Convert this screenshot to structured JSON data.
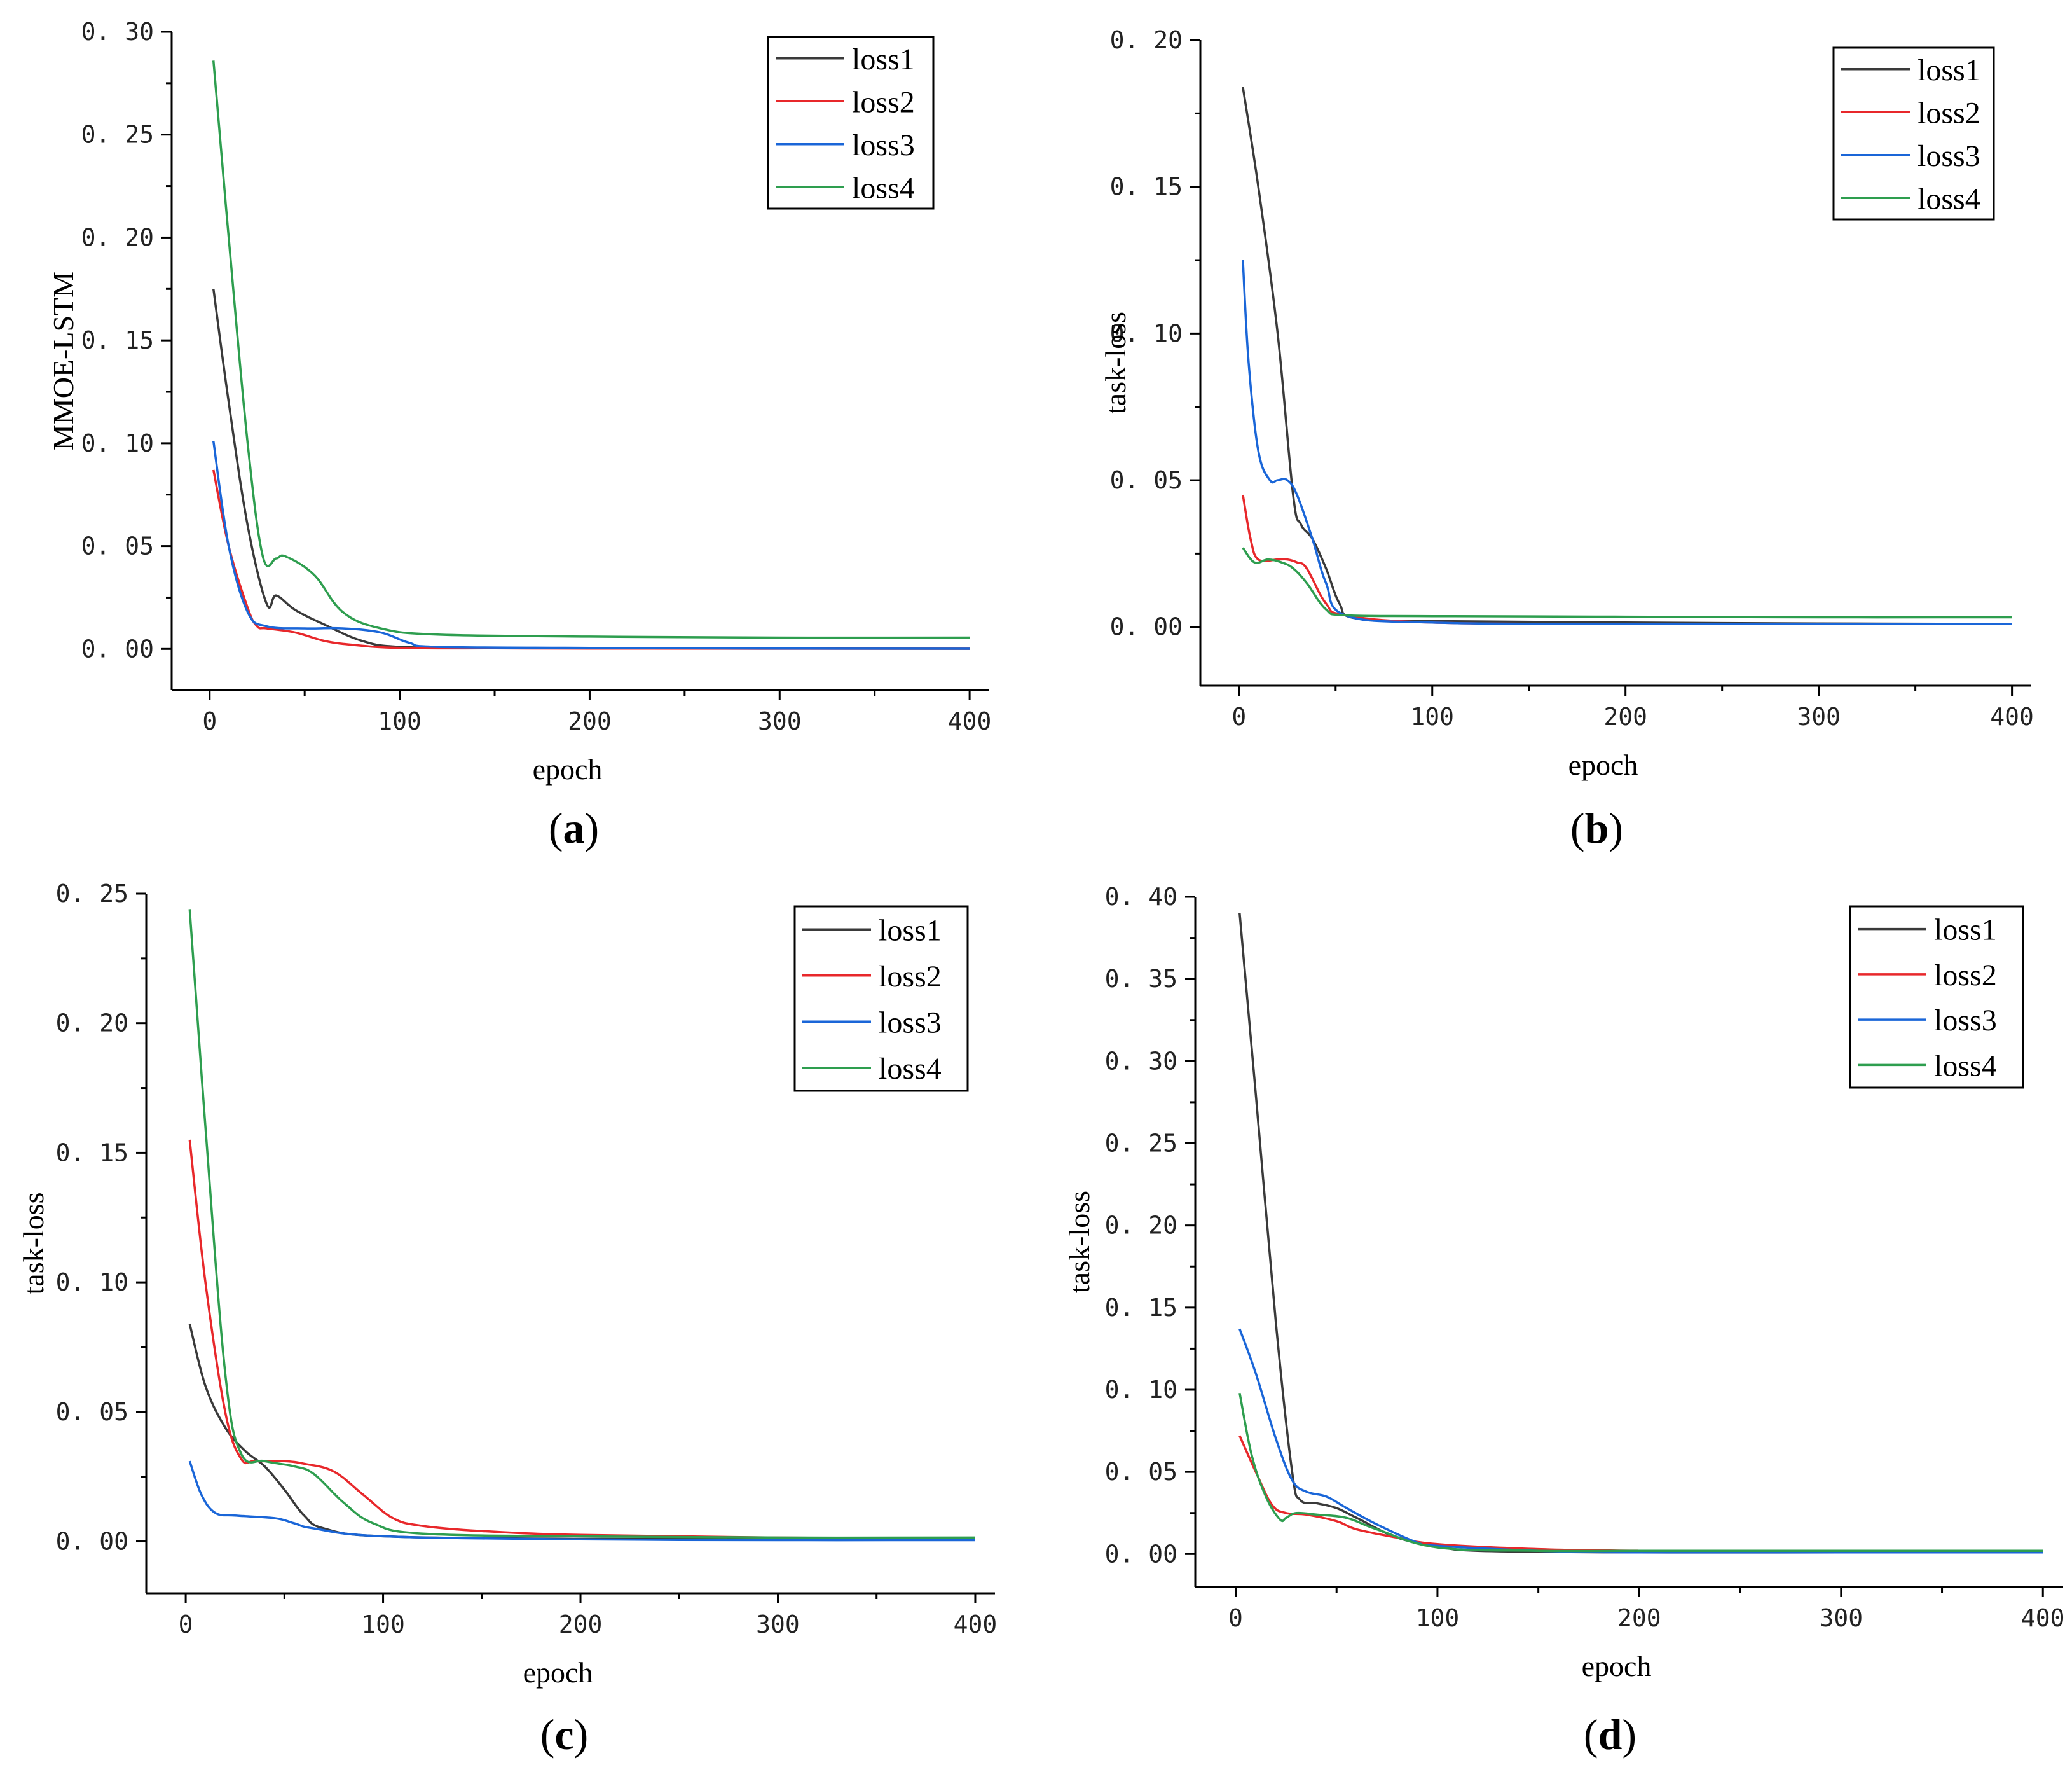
{
  "figure": {
    "colors": {
      "loss1": "#3a3a3a",
      "loss2": "#e8282b",
      "loss3": "#1a66d8",
      "loss4": "#2e9e4f"
    }
  },
  "chart_data": [
    {
      "type": "line",
      "panel_label": "a",
      "xlabel": "epoch",
      "ylabel": "MMOE-LSTM",
      "xlim": [
        -20,
        410
      ],
      "ylim": [
        -0.02,
        0.3
      ],
      "xticks": [
        0,
        100,
        200,
        300,
        400
      ],
      "yticks": [
        0.0,
        0.05,
        0.1,
        0.15,
        0.2,
        0.25,
        0.3
      ],
      "ytick_labels": [
        "0. 00",
        "0. 05",
        "0. 10",
        "0. 15",
        "0. 20",
        "0. 25",
        "0. 30"
      ],
      "legend": [
        "loss1",
        "loss2",
        "loss3",
        "loss4"
      ],
      "legend_position": "top-right",
      "series": [
        {
          "name": "loss1",
          "x": [
            2,
            10,
            20,
            30,
            35,
            45,
            60,
            80,
            100,
            150,
            200,
            300,
            400
          ],
          "y": [
            0.175,
            0.12,
            0.06,
            0.022,
            0.026,
            0.019,
            0.012,
            0.004,
            0.001,
            0.0005,
            0.0003,
            0.0002,
            0.0001
          ]
        },
        {
          "name": "loss2",
          "x": [
            2,
            10,
            20,
            25,
            30,
            45,
            60,
            75,
            100,
            150,
            200,
            300,
            400
          ],
          "y": [
            0.087,
            0.05,
            0.02,
            0.011,
            0.01,
            0.008,
            0.004,
            0.002,
            0.0005,
            0.0003,
            0.0002,
            0.0001,
            0.0001
          ]
        },
        {
          "name": "loss3",
          "x": [
            2,
            10,
            20,
            30,
            50,
            70,
            90,
            105,
            120,
            200,
            300,
            400
          ],
          "y": [
            0.101,
            0.05,
            0.018,
            0.011,
            0.01,
            0.01,
            0.008,
            0.003,
            0.001,
            0.0005,
            0.0002,
            0.0001
          ]
        },
        {
          "name": "loss4",
          "x": [
            2,
            10,
            20,
            28,
            35,
            40,
            55,
            70,
            90,
            120,
            200,
            300,
            400
          ],
          "y": [
            0.286,
            0.2,
            0.1,
            0.045,
            0.044,
            0.045,
            0.036,
            0.018,
            0.01,
            0.007,
            0.006,
            0.0055,
            0.0055
          ]
        }
      ]
    },
    {
      "type": "line",
      "panel_label": "b",
      "xlabel": "epoch",
      "ylabel": "task-loss",
      "xlim": [
        -20,
        410
      ],
      "ylim": [
        -0.02,
        0.2
      ],
      "xticks": [
        0,
        100,
        200,
        300,
        400
      ],
      "yticks": [
        0.0,
        0.05,
        0.1,
        0.15,
        0.2
      ],
      "ytick_labels": [
        "0. 00",
        "0. 05",
        "0. 10",
        "0. 15",
        "0. 20"
      ],
      "legend": [
        "loss1",
        "loss2",
        "loss3",
        "loss4"
      ],
      "legend_position": "top-right",
      "series": [
        {
          "name": "loss1",
          "x": [
            2,
            10,
            20,
            28,
            32,
            38,
            45,
            52,
            60,
            100,
            200,
            300,
            400
          ],
          "y": [
            0.184,
            0.15,
            0.1,
            0.045,
            0.035,
            0.03,
            0.02,
            0.008,
            0.003,
            0.002,
            0.0015,
            0.0012,
            0.001
          ]
        },
        {
          "name": "loss2",
          "x": [
            2,
            6,
            10,
            20,
            25,
            30,
            35,
            45,
            55,
            100,
            200,
            300,
            400
          ],
          "y": [
            0.045,
            0.03,
            0.023,
            0.023,
            0.023,
            0.022,
            0.02,
            0.008,
            0.004,
            0.0015,
            0.001,
            0.001,
            0.001
          ]
        },
        {
          "name": "loss3",
          "x": [
            2,
            5,
            10,
            16,
            20,
            25,
            30,
            38,
            45,
            55,
            100,
            200,
            300,
            400
          ],
          "y": [
            0.125,
            0.09,
            0.06,
            0.05,
            0.05,
            0.05,
            0.045,
            0.03,
            0.015,
            0.004,
            0.0015,
            0.001,
            0.001,
            0.001
          ]
        },
        {
          "name": "loss4",
          "x": [
            2,
            8,
            15,
            22,
            28,
            35,
            45,
            55,
            100,
            200,
            300,
            400
          ],
          "y": [
            0.027,
            0.022,
            0.023,
            0.022,
            0.02,
            0.015,
            0.006,
            0.004,
            0.0037,
            0.0035,
            0.0033,
            0.0033
          ]
        }
      ]
    },
    {
      "type": "line",
      "panel_label": "c",
      "xlabel": "epoch",
      "ylabel": "task-loss",
      "xlim": [
        -20,
        410
      ],
      "ylim": [
        -0.02,
        0.25
      ],
      "xticks": [
        0,
        100,
        200,
        300,
        400
      ],
      "yticks": [
        0.0,
        0.05,
        0.1,
        0.15,
        0.2,
        0.25
      ],
      "ytick_labels": [
        "0. 00",
        "0. 05",
        "0. 10",
        "0. 15",
        "0. 20",
        "0. 25"
      ],
      "legend": [
        "loss1",
        "loss2",
        "loss3",
        "loss4"
      ],
      "legend_position": "top-right",
      "series": [
        {
          "name": "loss1",
          "x": [
            2,
            10,
            20,
            30,
            40,
            50,
            60,
            70,
            100,
            200,
            300,
            400
          ],
          "y": [
            0.084,
            0.06,
            0.044,
            0.035,
            0.029,
            0.02,
            0.01,
            0.005,
            0.002,
            0.001,
            0.001,
            0.0008
          ]
        },
        {
          "name": "loss2",
          "x": [
            2,
            10,
            20,
            28,
            35,
            50,
            60,
            75,
            90,
            105,
            120,
            150,
            200,
            300,
            400
          ],
          "y": [
            0.155,
            0.1,
            0.05,
            0.032,
            0.031,
            0.031,
            0.03,
            0.027,
            0.018,
            0.009,
            0.006,
            0.004,
            0.0025,
            0.0015,
            0.0012
          ]
        },
        {
          "name": "loss3",
          "x": [
            2,
            8,
            15,
            25,
            45,
            55,
            65,
            100,
            200,
            300,
            400
          ],
          "y": [
            0.031,
            0.018,
            0.011,
            0.01,
            0.009,
            0.007,
            0.005,
            0.002,
            0.0008,
            0.0005,
            0.0005
          ]
        },
        {
          "name": "loss4",
          "x": [
            2,
            10,
            20,
            28,
            40,
            55,
            65,
            80,
            95,
            120,
            200,
            300,
            400
          ],
          "y": [
            0.244,
            0.16,
            0.065,
            0.034,
            0.031,
            0.029,
            0.026,
            0.015,
            0.007,
            0.003,
            0.002,
            0.0015,
            0.0015
          ]
        }
      ]
    },
    {
      "type": "line",
      "panel_label": "d",
      "xlabel": "epoch",
      "ylabel": "task-loss",
      "xlim": [
        -20,
        410
      ],
      "ylim": [
        -0.02,
        0.4
      ],
      "xticks": [
        0,
        100,
        200,
        300,
        400
      ],
      "yticks": [
        0.0,
        0.05,
        0.1,
        0.15,
        0.2,
        0.25,
        0.3,
        0.35,
        0.4
      ],
      "ytick_labels": [
        "0. 00",
        "0. 05",
        "0. 10",
        "0. 15",
        "0. 20",
        "0. 25",
        "0. 30",
        "0. 35",
        "0. 40"
      ],
      "legend": [
        "loss1",
        "loss2",
        "loss3",
        "loss4"
      ],
      "legend_position": "top-right",
      "series": [
        {
          "name": "loss1",
          "x": [
            2,
            10,
            20,
            28,
            32,
            40,
            50,
            60,
            80,
            100,
            120,
            200,
            300,
            400
          ],
          "y": [
            0.39,
            0.28,
            0.14,
            0.05,
            0.033,
            0.031,
            0.028,
            0.022,
            0.01,
            0.005,
            0.002,
            0.001,
            0.001,
            0.001
          ]
        },
        {
          "name": "loss2",
          "x": [
            2,
            10,
            18,
            25,
            35,
            50,
            60,
            80,
            100,
            150,
            200,
            300,
            400
          ],
          "y": [
            0.072,
            0.05,
            0.03,
            0.025,
            0.024,
            0.02,
            0.015,
            0.01,
            0.006,
            0.003,
            0.002,
            0.0015,
            0.0015
          ]
        },
        {
          "name": "loss3",
          "x": [
            2,
            10,
            20,
            28,
            35,
            45,
            55,
            70,
            90,
            100,
            150,
            200,
            300,
            400
          ],
          "y": [
            0.137,
            0.11,
            0.07,
            0.045,
            0.038,
            0.035,
            0.028,
            0.018,
            0.007,
            0.005,
            0.002,
            0.001,
            0.001,
            0.001
          ]
        },
        {
          "name": "loss4",
          "x": [
            2,
            8,
            15,
            22,
            25,
            30,
            40,
            55,
            70,
            100,
            150,
            200,
            300,
            400
          ],
          "y": [
            0.098,
            0.06,
            0.035,
            0.021,
            0.022,
            0.025,
            0.024,
            0.022,
            0.015,
            0.004,
            0.002,
            0.002,
            0.002,
            0.002
          ]
        }
      ]
    }
  ]
}
